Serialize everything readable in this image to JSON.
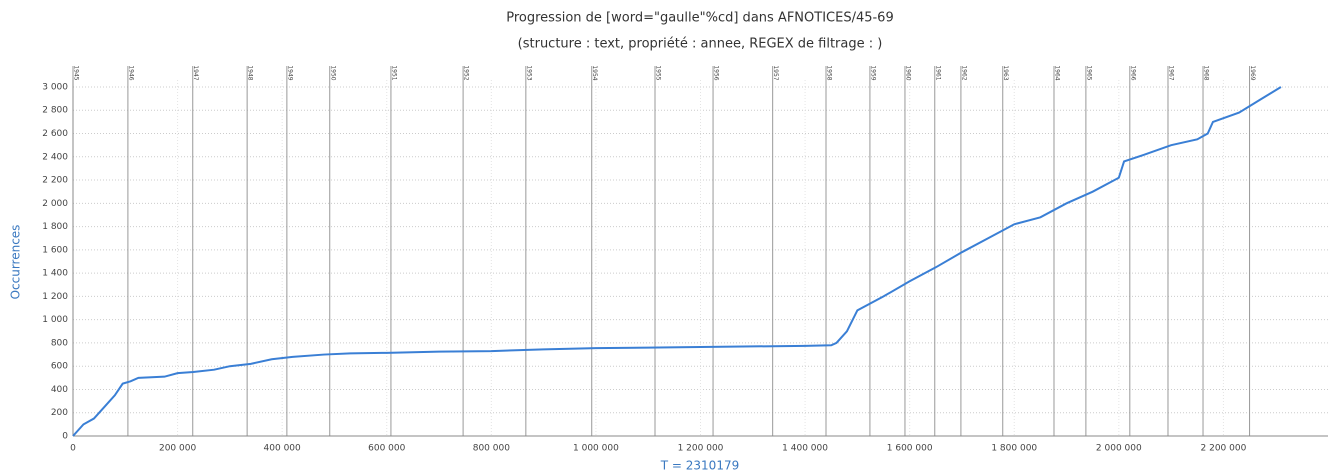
{
  "chart_data": {
    "type": "line",
    "title": "Progression de [word=\"gaulle\"%cd] dans AFNOTICES/45-69",
    "subtitle": "(structure :  text, propriété :  annee, REGEX de filtrage : )",
    "x_label": "T = 2310179",
    "y_label": "Occurrences",
    "xlim": [
      0,
      2400000
    ],
    "ylim": [
      0,
      3060
    ],
    "xticks": [
      0,
      {
        "value": 200000,
        "label": "200 000"
      },
      {
        "value": 400000,
        "label": "400 000"
      },
      {
        "value": 600000,
        "label": "600 000"
      },
      {
        "value": 800000,
        "label": "800 000"
      },
      {
        "value": 1000000,
        "label": "1 000 000"
      },
      {
        "value": 1200000,
        "label": "1 200 000"
      },
      {
        "value": 1400000,
        "label": "1 400 000"
      },
      {
        "value": 1600000,
        "label": "1 600 000"
      },
      {
        "value": 1800000,
        "label": "1 800 000"
      },
      {
        "value": 2000000,
        "label": "2 000 000"
      },
      {
        "value": 2200000,
        "label": "2 200 000"
      }
    ],
    "yticks": [
      0,
      200,
      400,
      600,
      800,
      {
        "value": 1000,
        "label": "1 000"
      },
      {
        "value": 1200,
        "label": "1 200"
      },
      {
        "value": 1400,
        "label": "1 400"
      },
      {
        "value": 1600,
        "label": "1 600"
      },
      {
        "value": 1800,
        "label": "1 800"
      },
      {
        "value": 2000,
        "label": "2 000"
      },
      {
        "value": 2200,
        "label": "2 200"
      },
      {
        "value": 2400,
        "label": "2 400"
      },
      {
        "value": 2600,
        "label": "2 600"
      },
      {
        "value": 2800,
        "label": "2 800"
      },
      {
        "value": 3000,
        "label": "3 000"
      }
    ],
    "grid": true,
    "markers": [
      {
        "label": "1945",
        "x": 0
      },
      {
        "label": "1946",
        "x": 105000
      },
      {
        "label": "1947",
        "x": 229000
      },
      {
        "label": "1948",
        "x": 333000
      },
      {
        "label": "1949",
        "x": 409000
      },
      {
        "label": "1950",
        "x": 491000
      },
      {
        "label": "1951",
        "x": 608000
      },
      {
        "label": "1952",
        "x": 746000
      },
      {
        "label": "1953",
        "x": 866000
      },
      {
        "label": "1954",
        "x": 992000
      },
      {
        "label": "1955",
        "x": 1113000
      },
      {
        "label": "1956",
        "x": 1224000
      },
      {
        "label": "1957",
        "x": 1338000
      },
      {
        "label": "1958",
        "x": 1440000
      },
      {
        "label": "1959",
        "x": 1524000
      },
      {
        "label": "1960",
        "x": 1591000
      },
      {
        "label": "1961",
        "x": 1648000
      },
      {
        "label": "1962",
        "x": 1698000
      },
      {
        "label": "1963",
        "x": 1778000
      },
      {
        "label": "1964",
        "x": 1876000
      },
      {
        "label": "1965",
        "x": 1937000
      },
      {
        "label": "1966",
        "x": 2021000
      },
      {
        "label": "1967",
        "x": 2094000
      },
      {
        "label": "1968",
        "x": 2161000
      },
      {
        "label": "1969",
        "x": 2250000
      }
    ],
    "x": [
      0,
      20000,
      40000,
      60000,
      80000,
      95000,
      110000,
      125000,
      175000,
      200000,
      230000,
      270000,
      300000,
      340000,
      380000,
      420000,
      480000,
      530000,
      600000,
      700000,
      800000,
      900000,
      1000000,
      1100000,
      1200000,
      1300000,
      1400000,
      1450000,
      1460000,
      1480000,
      1500000,
      1550000,
      1600000,
      1650000,
      1700000,
      1750000,
      1800000,
      1850000,
      1900000,
      1950000,
      2000000,
      2010000,
      2050000,
      2100000,
      2150000,
      2170000,
      2180000,
      2230000,
      2270000,
      2310000
    ],
    "series": [
      {
        "name": "Occurrences",
        "color": "#3a7fd5",
        "values": [
          0,
          100,
          150,
          250,
          350,
          450,
          470,
          500,
          510,
          540,
          550,
          570,
          600,
          620,
          660,
          680,
          700,
          710,
          715,
          725,
          730,
          745,
          755,
          760,
          765,
          770,
          775,
          780,
          800,
          900,
          1080,
          1200,
          1330,
          1450,
          1580,
          1700,
          1820,
          1880,
          2000,
          2100,
          2220,
          2360,
          2420,
          2500,
          2550,
          2600,
          2700,
          2780,
          2890,
          3000
        ]
      }
    ]
  }
}
